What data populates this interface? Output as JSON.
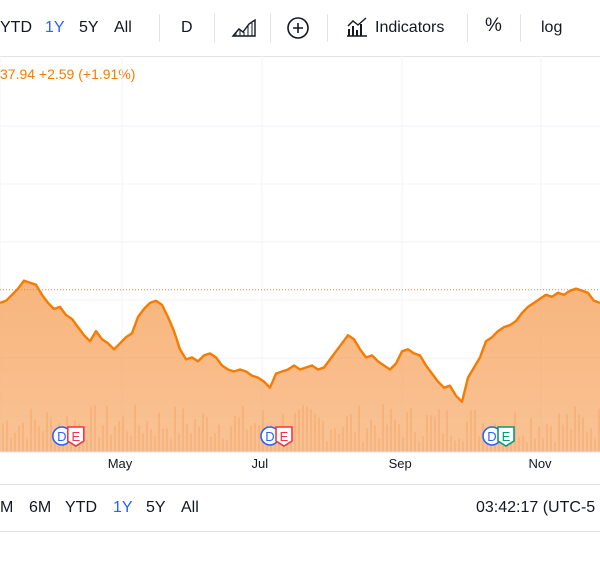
{
  "toolbar": {
    "ranges": [
      {
        "label": "YTD",
        "active": false
      },
      {
        "label": "1Y",
        "active": true
      },
      {
        "label": "5Y",
        "active": false
      },
      {
        "label": "All",
        "active": false
      }
    ],
    "interval": "D",
    "chart_style_icon": "area-chart-icon",
    "compare_icon": "plus-circle-icon",
    "indicators_icon": "indicators-icon",
    "indicators_label": "Indicators",
    "percent_label": "%",
    "log_label": "log"
  },
  "quote": {
    "text": "37.94 +2.59 (+1.91%)",
    "color": "#f57c00"
  },
  "bottom_bar": {
    "ranges": [
      {
        "label": "M",
        "active": false
      },
      {
        "label": "6M",
        "active": false
      },
      {
        "label": "YTD",
        "active": false
      },
      {
        "label": "1Y",
        "active": true
      },
      {
        "label": "5Y",
        "active": false
      },
      {
        "label": "All",
        "active": false
      }
    ],
    "clock": "03:42:17 (UTC-5"
  },
  "chart_data": {
    "type": "area",
    "xlabel": "",
    "ylabel": "",
    "x_ticks": [
      "May",
      "Jul",
      "Sep",
      "Nov"
    ],
    "x_range": [
      0,
      100
    ],
    "x_tick_positions": [
      20.0,
      43.3,
      66.7,
      90.0
    ],
    "y_range": [
      0,
      100
    ],
    "grid": true,
    "price_line_level": 63.5,
    "series": [
      {
        "x": [
          0,
          1,
          2,
          3,
          4,
          5,
          6,
          7,
          8,
          9,
          10,
          11,
          12,
          13,
          14,
          15,
          16,
          17,
          18,
          19,
          20,
          21,
          22,
          23,
          24,
          25,
          26,
          27,
          28,
          29,
          30,
          31,
          32,
          33,
          34,
          35,
          36,
          37,
          38,
          39,
          40,
          41,
          42,
          43,
          44,
          45,
          46,
          47,
          48,
          49,
          50,
          51,
          52,
          53,
          54,
          55,
          56,
          57,
          58,
          59,
          60,
          61,
          62,
          63,
          64,
          65,
          66,
          67,
          68,
          69,
          70,
          71,
          72,
          73,
          74,
          75,
          76,
          77,
          78,
          79,
          80,
          81,
          82,
          83,
          84,
          85,
          86,
          87,
          88,
          89,
          90,
          91,
          92,
          93,
          94,
          95,
          96,
          97,
          98,
          99,
          100
        ],
        "values": [
          57,
          58,
          61,
          64,
          68,
          67,
          66,
          61,
          57,
          54,
          55,
          51,
          49,
          45,
          41,
          38,
          43,
          39,
          37,
          34,
          37,
          40,
          42,
          50,
          54,
          57,
          58,
          56,
          50,
          43,
          34,
          29,
          30,
          28,
          31,
          32,
          30,
          26,
          24,
          23,
          24,
          23,
          21,
          20,
          18,
          15,
          22,
          23,
          24,
          26,
          24,
          25,
          26,
          24,
          25,
          29,
          33,
          37,
          41,
          39,
          34,
          30,
          31,
          28,
          26,
          24,
          27,
          33,
          34,
          32,
          31,
          26,
          22,
          18,
          15,
          16,
          11,
          8,
          20,
          25,
          30,
          38,
          40,
          43,
          45,
          46,
          48,
          52,
          55,
          57,
          59,
          61,
          60,
          62,
          61,
          63,
          64,
          63,
          62,
          58,
          57
        ],
        "color": "#f57c00"
      }
    ],
    "dividend_markers": [
      {
        "x": 10.3,
        "labels": [
          "D",
          "E"
        ]
      },
      {
        "x": 45.0,
        "labels": [
          "D",
          "E"
        ]
      },
      {
        "x": 82.0,
        "labels": [
          "D",
          "E"
        ]
      }
    ],
    "marker_colors": {
      "D": "#2962ff",
      "E_first": "#f23645",
      "E_last": "#089981"
    }
  }
}
